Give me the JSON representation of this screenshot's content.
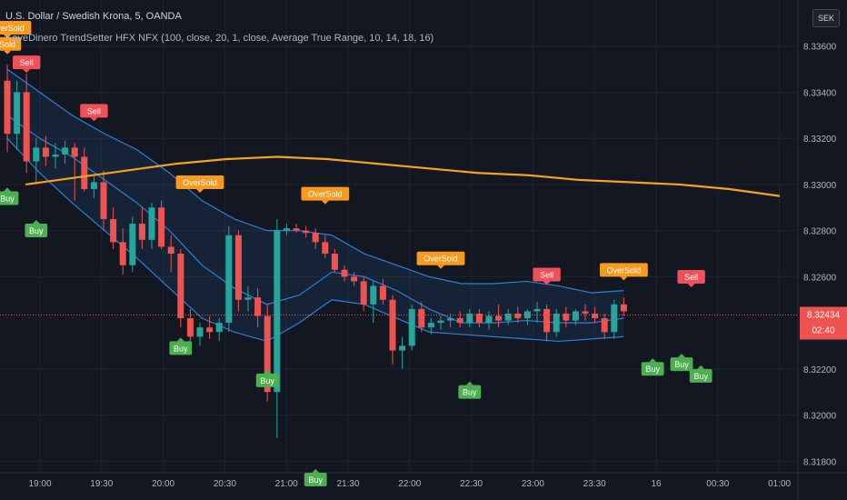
{
  "header": {
    "title": "U.S. Dollar / Swedish Krona, 5, OANDA",
    "indicator": "KayeDinero TrendSetter HFX NFX (100, close, 20, 1, close, Average True Range, 10, 14, 18, 16)",
    "currency": "SEK"
  },
  "colors": {
    "background": "#131722",
    "grid": "#1f2330",
    "up": "#26a69a",
    "down": "#ef5350",
    "ma": "#f7a21b",
    "band": "#2e7fd2",
    "buy_label": "#4caf50",
    "sell_label": "#f05058",
    "oversold_label": "#f79a1e",
    "price_tag": "#ef5350"
  },
  "chart_data": {
    "type": "candlestick",
    "x_ticks": [
      "19:00",
      "19:30",
      "20:00",
      "20:30",
      "21:00",
      "21:30",
      "22:00",
      "22:30",
      "23:00",
      "23:30",
      "16",
      "00:30",
      "01:00"
    ],
    "y_ticks": [
      "8.33600",
      "8.33400",
      "8.33200",
      "8.33000",
      "8.32800",
      "8.32600",
      "8.32200",
      "8.32000",
      "8.31800"
    ],
    "ylim": [
      8.3175,
      8.338
    ],
    "last_price": "8.32434",
    "countdown": "02:40",
    "bar_minutes": 5,
    "candles": [
      [
        8.3345,
        8.3352,
        8.3314,
        8.3322
      ],
      [
        8.3322,
        8.3345,
        8.3315,
        8.334
      ],
      [
        8.334,
        8.3348,
        8.3305,
        8.331
      ],
      [
        8.331,
        8.332,
        8.33,
        8.3316
      ],
      [
        8.3316,
        8.3321,
        8.3308,
        8.3312
      ],
      [
        8.3312,
        8.3318,
        8.3307,
        8.3313
      ],
      [
        8.3313,
        8.3319,
        8.3309,
        8.3316
      ],
      [
        8.3316,
        8.3318,
        8.3293,
        8.3312
      ],
      [
        8.3312,
        8.3316,
        8.3297,
        8.3298
      ],
      [
        8.3298,
        8.3304,
        8.3294,
        8.3301
      ],
      [
        8.3301,
        8.3306,
        8.328,
        8.3285
      ],
      [
        8.3285,
        8.329,
        8.3272,
        8.3275
      ],
      [
        8.3275,
        8.3281,
        8.3261,
        8.3265
      ],
      [
        8.3265,
        8.3286,
        8.3262,
        8.3283
      ],
      [
        8.3283,
        8.329,
        8.3272,
        8.3276
      ],
      [
        8.3276,
        8.3292,
        8.3272,
        8.329
      ],
      [
        8.329,
        8.3293,
        8.3272,
        8.3273
      ],
      [
        8.3273,
        8.3278,
        8.3262,
        8.327
      ],
      [
        8.327,
        8.3272,
        8.3238,
        8.3242
      ],
      [
        8.3242,
        8.3246,
        8.3229,
        8.3234
      ],
      [
        8.3234,
        8.324,
        8.323,
        8.3238
      ],
      [
        8.3238,
        8.3243,
        8.3233,
        8.3236
      ],
      [
        8.3236,
        8.3242,
        8.3232,
        8.324
      ],
      [
        8.324,
        8.3282,
        8.3236,
        8.3278
      ],
      [
        8.3278,
        8.328,
        8.3245,
        8.325
      ],
      [
        8.325,
        8.3256,
        8.3245,
        8.3251
      ],
      [
        8.3251,
        8.3255,
        8.3238,
        8.3243
      ],
      [
        8.3243,
        8.3248,
        8.3206,
        8.321
      ],
      [
        8.321,
        8.3285,
        8.319,
        8.328
      ],
      [
        8.328,
        8.3283,
        8.3278,
        8.3281
      ],
      [
        8.3281,
        8.3283,
        8.3279,
        8.328
      ],
      [
        8.328,
        8.3282,
        8.3277,
        8.3279
      ],
      [
        8.3279,
        8.3281,
        8.3272,
        8.3275
      ],
      [
        8.3275,
        8.3278,
        8.3268,
        8.327
      ],
      [
        8.327,
        8.3272,
        8.3262,
        8.3263
      ],
      [
        8.3263,
        8.3265,
        8.3258,
        8.326
      ],
      [
        8.326,
        8.3262,
        8.3256,
        8.3258
      ],
      [
        8.3258,
        8.326,
        8.3245,
        8.3248
      ],
      [
        8.3248,
        8.3258,
        8.324,
        8.3256
      ],
      [
        8.3256,
        8.3259,
        8.3248,
        8.325
      ],
      [
        8.325,
        8.3252,
        8.3222,
        8.3228
      ],
      [
        8.3228,
        8.3234,
        8.322,
        8.323
      ],
      [
        8.323,
        8.3248,
        8.3228,
        8.3246
      ],
      [
        8.3246,
        8.3249,
        8.3236,
        8.3238
      ],
      [
        8.3238,
        8.3242,
        8.3235,
        8.324
      ],
      [
        8.324,
        8.3243,
        8.3237,
        8.3241
      ],
      [
        8.3241,
        8.3244,
        8.3238,
        8.3242
      ],
      [
        8.3242,
        8.3245,
        8.3238,
        8.324
      ],
      [
        8.324,
        8.3246,
        8.3238,
        8.3244
      ],
      [
        8.3244,
        8.3246,
        8.3238,
        8.324
      ],
      [
        8.324,
        8.3245,
        8.3237,
        8.3243
      ],
      [
        8.3243,
        8.3248,
        8.3238,
        8.3241
      ],
      [
        8.3241,
        8.3246,
        8.3239,
        8.3244
      ],
      [
        8.3244,
        8.3247,
        8.324,
        8.3242
      ],
      [
        8.3242,
        8.3246,
        8.3239,
        8.3245
      ],
      [
        8.3245,
        8.3249,
        8.324,
        8.3246
      ],
      [
        8.3246,
        8.3248,
        8.3232,
        8.3236
      ],
      [
        8.3236,
        8.3246,
        8.3234,
        8.3244
      ],
      [
        8.3244,
        8.3247,
        8.3238,
        8.3241
      ],
      [
        8.3241,
        8.3246,
        8.3239,
        8.3245
      ],
      [
        8.3245,
        8.3248,
        8.3241,
        8.3244
      ],
      [
        8.3244,
        8.3247,
        8.324,
        8.3242
      ],
      [
        8.3242,
        8.3244,
        8.3233,
        8.3236
      ],
      [
        8.3236,
        8.325,
        8.3233,
        8.3248
      ],
      [
        8.3248,
        8.3251,
        8.3243,
        8.3245
      ]
    ],
    "ma": [
      8.33,
      8.3303,
      8.3306,
      8.3309,
      8.3311,
      8.3312,
      8.3311,
      8.3309,
      8.3307,
      8.3305,
      8.3304,
      8.3302,
      8.3301,
      8.33,
      8.3298,
      8.3295
    ],
    "upper_band": [
      8.335,
      8.334,
      8.333,
      8.3322,
      8.3315,
      8.3305,
      8.3293,
      8.3285,
      8.328,
      8.328,
      8.3278,
      8.327,
      8.3265,
      8.326,
      8.3257,
      8.3257,
      8.3258,
      8.3256,
      8.3253,
      8.3254
    ],
    "mid_band": [
      8.333,
      8.332,
      8.3312,
      8.3302,
      8.3292,
      8.328,
      8.3265,
      8.3255,
      8.3248,
      8.3252,
      8.3262,
      8.326,
      8.3254,
      8.3246,
      8.324,
      8.324,
      8.3241,
      8.324,
      8.324,
      8.3242
    ],
    "lower_band": [
      8.332,
      8.3305,
      8.3292,
      8.328,
      8.3268,
      8.3255,
      8.3242,
      8.3236,
      8.3232,
      8.324,
      8.325,
      8.3248,
      8.3242,
      8.3236,
      8.3235,
      8.3234,
      8.3233,
      8.3232,
      8.3233,
      8.3234
    ],
    "signals": [
      {
        "text": "OverSold",
        "bar": 0,
        "price": 8.3365,
        "kind": "oversold",
        "dir": "down"
      },
      {
        "text": "Sold",
        "bar": 0,
        "price": 8.3358,
        "kind": "oversold",
        "dir": "down"
      },
      {
        "text": "Sell",
        "bar": 2,
        "price": 8.335,
        "kind": "sell",
        "dir": "down"
      },
      {
        "text": "Sell",
        "bar": 9,
        "price": 8.3329,
        "kind": "sell",
        "dir": "down"
      },
      {
        "text": "Buy",
        "bar": 0,
        "price": 8.3297,
        "kind": "buy",
        "dir": "up"
      },
      {
        "text": "Buy",
        "bar": 3,
        "price": 8.3283,
        "kind": "buy",
        "dir": "up"
      },
      {
        "text": "OverSold",
        "bar": 20,
        "price": 8.3298,
        "kind": "oversold",
        "dir": "down"
      },
      {
        "text": "OverSold",
        "bar": 33,
        "price": 8.3293,
        "kind": "oversold",
        "dir": "down"
      },
      {
        "text": "Buy",
        "bar": 18,
        "price": 8.3232,
        "kind": "buy",
        "dir": "up"
      },
      {
        "text": "Buy",
        "bar": 27,
        "price": 8.3218,
        "kind": "buy",
        "dir": "up"
      },
      {
        "text": "Buy",
        "bar": 32,
        "price": 8.3175,
        "kind": "buy",
        "dir": "up"
      },
      {
        "text": "OverSold",
        "bar": 45,
        "price": 8.3265,
        "kind": "oversold",
        "dir": "down"
      },
      {
        "text": "Buy",
        "bar": 48,
        "price": 8.3213,
        "kind": "buy",
        "dir": "up"
      },
      {
        "text": "Sell",
        "bar": 56,
        "price": 8.3258,
        "kind": "sell",
        "dir": "down"
      },
      {
        "text": "OverSold",
        "bar": 64,
        "price": 8.326,
        "kind": "oversold",
        "dir": "down"
      },
      {
        "text": "Buy",
        "bar": 67,
        "price": 8.3223,
        "kind": "buy",
        "dir": "up"
      },
      {
        "text": "Sell",
        "bar": 71,
        "price": 8.3257,
        "kind": "sell",
        "dir": "down"
      },
      {
        "text": "Buy",
        "bar": 70,
        "price": 8.3225,
        "kind": "buy",
        "dir": "up"
      },
      {
        "text": "Buy",
        "bar": 72,
        "price": 8.322,
        "kind": "buy",
        "dir": "up"
      }
    ]
  }
}
